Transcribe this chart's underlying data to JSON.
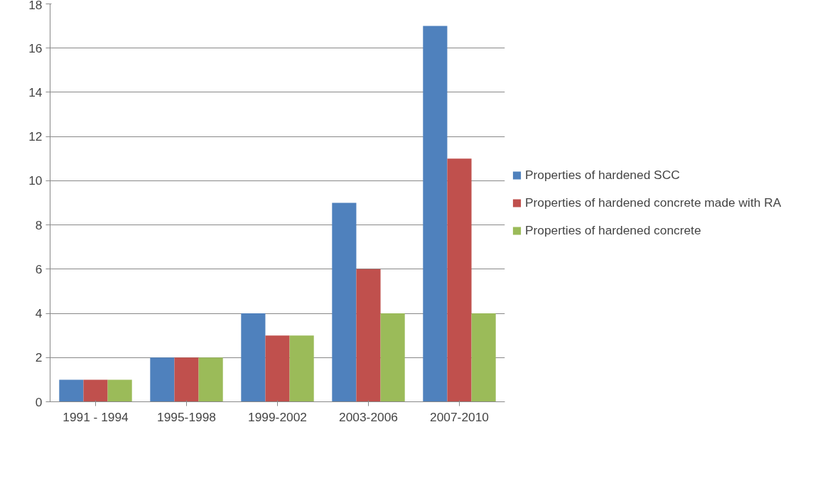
{
  "chart_data": {
    "type": "bar",
    "categories": [
      "1991 - 1994",
      "1995-1998",
      "1999-2002",
      "2003-2006",
      "2007-2010"
    ],
    "series": [
      {
        "name": "Properties of hardened SCC",
        "color": "#4f81bd",
        "values": [
          1,
          2,
          4,
          9,
          17
        ]
      },
      {
        "name": "Properties of hardened concrete made with RA",
        "color": "#c0504d",
        "values": [
          1,
          2,
          3,
          6,
          11
        ]
      },
      {
        "name": "Properties of hardened concrete",
        "color": "#9bbb59",
        "values": [
          1,
          2,
          3,
          4,
          4
        ]
      }
    ],
    "ylim": [
      0,
      18
    ],
    "yticks": [
      0,
      2,
      4,
      6,
      8,
      10,
      12,
      14,
      16,
      18
    ],
    "grid": "y",
    "legend": "right"
  }
}
